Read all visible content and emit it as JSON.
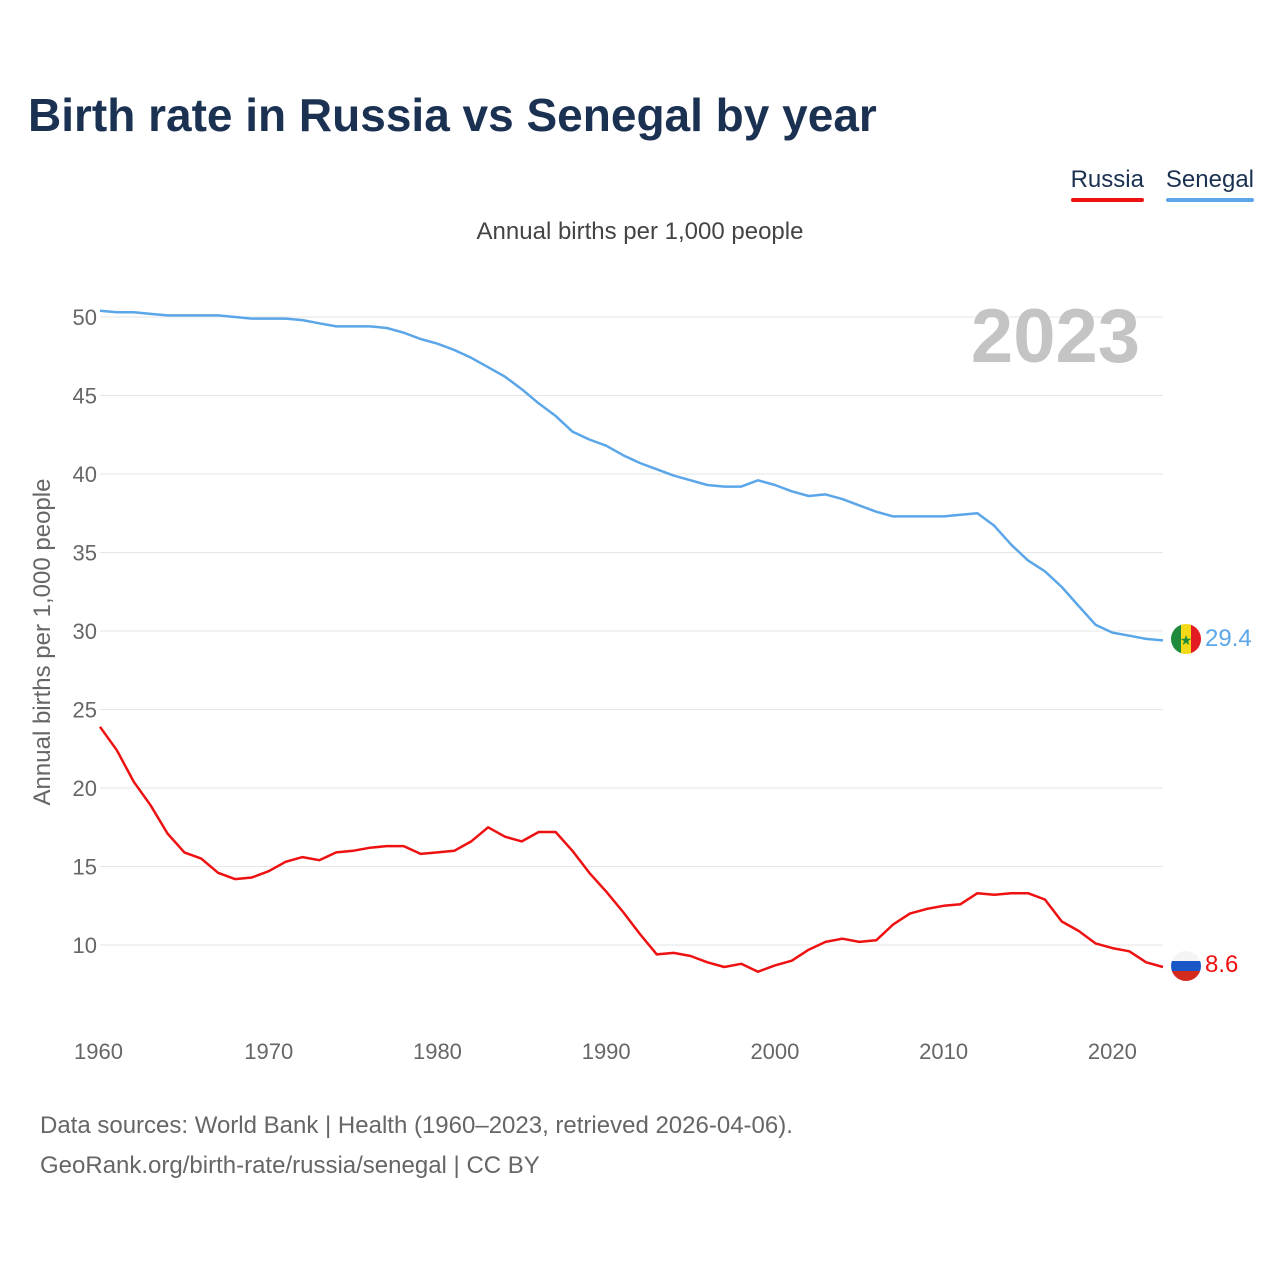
{
  "title": "Birth rate in Russia vs Senegal by year",
  "subtitle": "Annual births per 1,000 people",
  "year_watermark": "2023",
  "footer": {
    "line1": "Data sources: World Bank | Health (1960–2023, retrieved 2026-04-06).",
    "line2": "GeoRank.org/birth-rate/russia/senegal | CC BY"
  },
  "legend": [
    {
      "label": "Russia",
      "color": "#ee1111"
    },
    {
      "label": "Senegal",
      "color": "#5ba6e8"
    }
  ],
  "end_labels": {
    "russia": "8.6",
    "senegal": "29.4"
  },
  "colors": {
    "title": "#1b3152",
    "grid": "#e6e6e6",
    "tick": "#666666",
    "watermark": "#c4c4c4"
  },
  "chart_data": {
    "type": "line",
    "title": "Birth rate in Russia vs Senegal by year",
    "xlabel": "",
    "ylabel": "Annual births per 1,000 people",
    "xlim": [
      1960,
      2023
    ],
    "ylim": [
      5,
      52
    ],
    "xticks": [
      1960,
      1970,
      1980,
      1990,
      2000,
      2010,
      2020
    ],
    "yticks": [
      10,
      15,
      20,
      25,
      30,
      35,
      40,
      45,
      50
    ],
    "grid": true,
    "legend_position": "top-right",
    "x": [
      1960,
      1961,
      1962,
      1963,
      1964,
      1965,
      1966,
      1967,
      1968,
      1969,
      1970,
      1971,
      1972,
      1973,
      1974,
      1975,
      1976,
      1977,
      1978,
      1979,
      1980,
      1981,
      1982,
      1983,
      1984,
      1985,
      1986,
      1987,
      1988,
      1989,
      1990,
      1991,
      1992,
      1993,
      1994,
      1995,
      1996,
      1997,
      1998,
      1999,
      2000,
      2001,
      2002,
      2003,
      2004,
      2005,
      2006,
      2007,
      2008,
      2009,
      2010,
      2011,
      2012,
      2013,
      2014,
      2015,
      2016,
      2017,
      2018,
      2019,
      2020,
      2021,
      2022,
      2023
    ],
    "series": [
      {
        "name": "Russia",
        "color": "#ee1111",
        "values": [
          23.9,
          22.4,
          20.4,
          18.9,
          17.1,
          15.9,
          15.5,
          14.6,
          14.2,
          14.3,
          14.7,
          15.3,
          15.6,
          15.4,
          15.9,
          16.0,
          16.2,
          16.3,
          16.3,
          15.8,
          15.9,
          16.0,
          16.6,
          17.5,
          16.9,
          16.6,
          17.2,
          17.2,
          16.0,
          14.6,
          13.4,
          12.1,
          10.7,
          9.4,
          9.5,
          9.3,
          8.9,
          8.6,
          8.8,
          8.3,
          8.7,
          9.0,
          9.7,
          10.2,
          10.4,
          10.2,
          10.3,
          11.3,
          12.0,
          12.3,
          12.5,
          12.6,
          13.3,
          13.2,
          13.3,
          13.3,
          12.9,
          11.5,
          10.9,
          10.1,
          9.8,
          9.6,
          8.9,
          8.6
        ]
      },
      {
        "name": "Senegal",
        "color": "#5ba6e8",
        "values": [
          50.4,
          50.3,
          50.3,
          50.2,
          50.1,
          50.1,
          50.1,
          50.1,
          50.0,
          49.9,
          49.9,
          49.9,
          49.8,
          49.6,
          49.4,
          49.4,
          49.4,
          49.3,
          49.0,
          48.6,
          48.3,
          47.9,
          47.4,
          46.8,
          46.2,
          45.4,
          44.5,
          43.7,
          42.7,
          42.2,
          41.8,
          41.2,
          40.7,
          40.3,
          39.9,
          39.6,
          39.3,
          39.2,
          39.2,
          39.6,
          39.3,
          38.9,
          38.6,
          38.7,
          38.4,
          38.0,
          37.6,
          37.3,
          37.3,
          37.3,
          37.3,
          37.4,
          37.5,
          36.7,
          35.5,
          34.5,
          33.8,
          32.8,
          31.6,
          30.4,
          29.9,
          29.7,
          29.5,
          29.4
        ]
      }
    ]
  }
}
